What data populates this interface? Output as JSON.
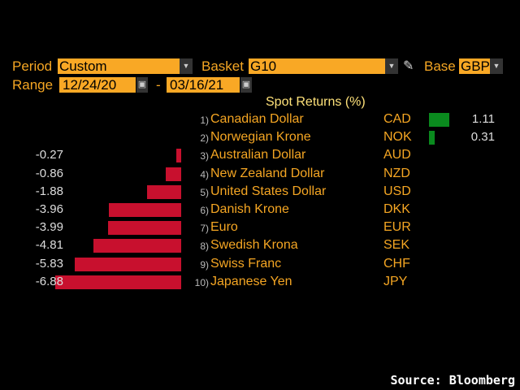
{
  "controls": {
    "period_label": "Period",
    "period_value": "Custom",
    "basket_label": "Basket",
    "basket_value": "G10",
    "base_label": "Base",
    "base_value": "GBP",
    "range_label": "Range",
    "range_start": "12/24/20",
    "range_sep": "-",
    "range_end": "03/16/21"
  },
  "chart_data": {
    "type": "bar",
    "title": "Spot Returns (%)",
    "orientation": "horizontal",
    "categories": [
      "Canadian Dollar",
      "Norwegian Krone",
      "Australian Dollar",
      "New Zealand Dollar",
      "United States Dollar",
      "Danish Krone",
      "Euro",
      "Swedish Krona",
      "Swiss Franc",
      "Japanese Yen"
    ],
    "ranks": [
      "1)",
      "2)",
      "3)",
      "4)",
      "5)",
      "6)",
      "7)",
      "8)",
      "9)",
      "10)"
    ],
    "codes": [
      "CAD",
      "NOK",
      "AUD",
      "NZD",
      "USD",
      "DKK",
      "EUR",
      "SEK",
      "CHF",
      "JPY"
    ],
    "values": [
      1.11,
      0.31,
      -0.27,
      -0.86,
      -1.88,
      -3.96,
      -3.99,
      -4.81,
      -5.83,
      -6.88
    ],
    "labels": [
      "1.11",
      "0.31",
      "-0.27",
      "-0.86",
      "-1.88",
      "-3.96",
      "-3.99",
      "-4.81",
      "-5.83",
      "-6.88"
    ],
    "colors": {
      "positive": "#0a8a1e",
      "negative": "#c8102e"
    }
  },
  "source": "Source: Bloomberg"
}
